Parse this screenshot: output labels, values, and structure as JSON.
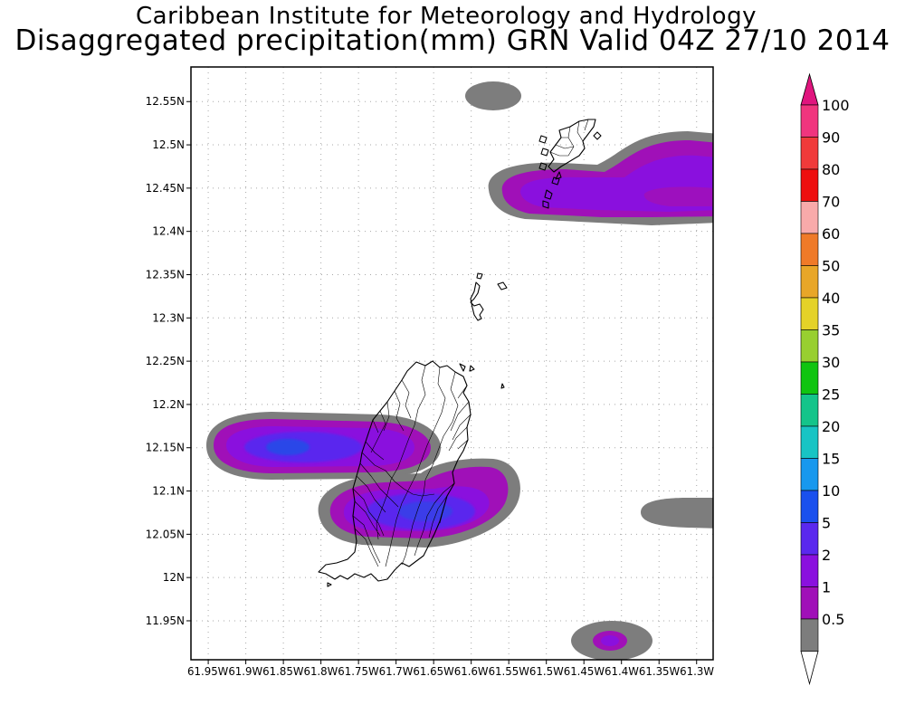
{
  "header": {
    "line1": "Caribbean Institute for Meteorology and Hydrology",
    "line2": "Disaggregated precipitation(mm) GRN Valid 04Z 27/10 2014"
  },
  "map": {
    "lat_labels": [
      "12.55N",
      "12.5N",
      "12.45N",
      "12.4N",
      "12.35N",
      "12.3N",
      "12.25N",
      "12.2N",
      "12.15N",
      "12.1N",
      "12.05N",
      "12N",
      "11.95N"
    ],
    "lat_values": [
      12.55,
      12.5,
      12.45,
      12.4,
      12.35,
      12.3,
      12.25,
      12.2,
      12.15,
      12.1,
      12.05,
      12.0,
      11.95
    ],
    "lon_axis_text": "61.95W61.9W61.85W61.8W61.75W61.7W61.65W61.6W61.55W61.5W61.45W61.4W61.35W61.3W",
    "lon_values": [
      -61.95,
      -61.9,
      -61.85,
      -61.8,
      -61.75,
      -61.7,
      -61.65,
      -61.6,
      -61.55,
      -61.5,
      -61.45,
      -61.4,
      -61.35,
      -61.3
    ],
    "lat_range": [
      11.905,
      12.59
    ],
    "lon_range": [
      -61.973,
      -61.278
    ],
    "grid": true,
    "colors": {
      "grid": "#a8a8a8",
      "land_outline": "#000000"
    }
  },
  "legend": {
    "labels": [
      "100",
      "90",
      "80",
      "70",
      "60",
      "50",
      "40",
      "35",
      "30",
      "25",
      "20",
      "15",
      "10",
      "5",
      "2",
      "1",
      "0.5"
    ],
    "colors": [
      "#f0357e",
      "#f03a3a",
      "#ee0e0e",
      "#f8aaaa",
      "#ef7a28",
      "#e8a628",
      "#e4d228",
      "#98cf30",
      "#10c410",
      "#14c48a",
      "#18c4c4",
      "#1898ee",
      "#1a50ee",
      "#5a28ee",
      "#8a10de",
      "#a010b8",
      "#7d7d7d"
    ],
    "top_arrow_color": "#e0157e",
    "bottom_arrow_color": "#ffffff"
  }
}
